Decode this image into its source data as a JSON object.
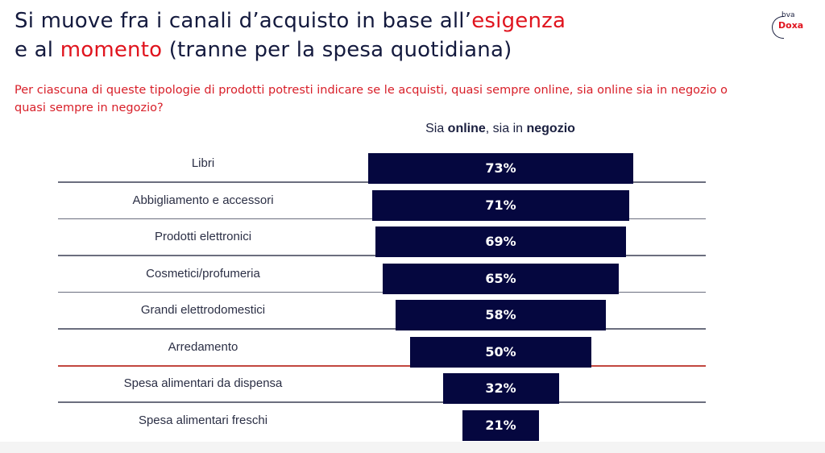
{
  "header": {
    "title_line1_a": "Si muove fra i canali d’acquisto in base all’",
    "title_line1_hl": "esigenza",
    "title_line2_a": "e al ",
    "title_line2_hl": "momento",
    "title_line2_b": " (tranne per la spesa quotidiana)",
    "question": "Per ciascuna di queste tipologie di prodotti potresti indicare se le acquisti, quasi sempre online, sia online sia in negozio o quasi sempre in negozio?",
    "logo_top": "bva",
    "logo_bottom": "Doxa"
  },
  "colors": {
    "bar": "#05073f",
    "highlight": "#e0141e",
    "separator": "#6b6e7e",
    "separator_highlight": "#c2473f"
  },
  "chart_data": {
    "type": "bar",
    "orientation": "horizontal-centered",
    "series_header": {
      "part1": "Sia ",
      "part2": "online",
      "part3": ", sia in ",
      "part4": "negozio"
    },
    "categories": [
      "Libri",
      "Abbigliamento e accessori",
      "Prodotti elettronici",
      "Cosmetici/profumeria",
      "Grandi elettrodomestici",
      "Arredamento",
      "Spesa alimentari da dispensa",
      "Spesa alimentari freschi"
    ],
    "values": [
      73,
      71,
      69,
      65,
      58,
      50,
      32,
      21
    ],
    "value_labels": [
      "73%",
      "71%",
      "69%",
      "65%",
      "58%",
      "50%",
      "32%",
      "21%"
    ],
    "unit": "%",
    "highlight_separator_after_index": 5
  }
}
